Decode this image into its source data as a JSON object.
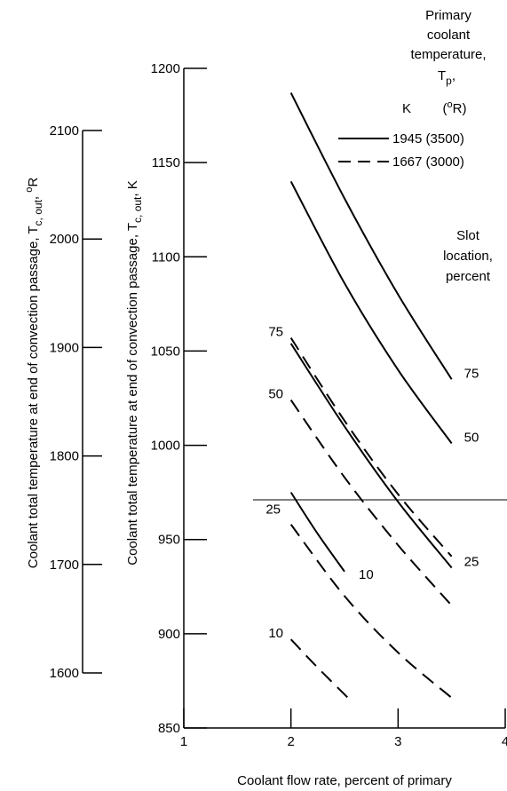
{
  "chart_data": {
    "type": "line",
    "xlabel": "Coolant flow rate, percent of primary",
    "ylabel_K": "Coolant total temperature at end of convection passage, T",
    "ylabel_K_sub": "c, out",
    "ylabel_K_unit": ", K",
    "ylabel_R": "Coolant total temperature at end of convection passage, T",
    "ylabel_R_sub": "c, out",
    "ylabel_R_unit": ", ",
    "ylabel_R_deg": "o",
    "ylabel_R_letter": "R",
    "xlim": [
      1,
      4
    ],
    "ylim_K": [
      850,
      1200
    ],
    "ylim_R": [
      1600,
      2100
    ],
    "x_ticks": [
      "1",
      "2",
      "3",
      "4"
    ],
    "y_ticks_K": [
      "850",
      "900",
      "950",
      "1000",
      "1050",
      "1100",
      "1150",
      "1200"
    ],
    "y_ticks_R": [
      "1600",
      "1700",
      "1800",
      "1900",
      "2000",
      "2100"
    ],
    "legend": {
      "title_lines": [
        "Primary",
        "coolant",
        "temperature,"
      ],
      "tp_main": "T",
      "tp_sub": "p",
      "tp_comma": ",",
      "units_K": "K",
      "units_R_open": "(",
      "units_R_deg": "o",
      "units_R_rest": "R)",
      "entries": [
        {
          "label": "1945 (3500)",
          "style": "solid"
        },
        {
          "label": "1667 (3000)",
          "style": "dashed"
        }
      ]
    },
    "slot_title_lines": [
      "Slot",
      "location,",
      "percent"
    ],
    "series": [
      {
        "style": "solid",
        "slot_label": "75",
        "x": [
          2.0,
          2.5,
          3.0,
          3.5
        ],
        "y": [
          1187,
          1131,
          1080,
          1035
        ]
      },
      {
        "style": "solid",
        "slot_label": "50",
        "x": [
          2.0,
          2.5,
          3.0,
          3.5
        ],
        "y": [
          1140,
          1086,
          1040,
          1001
        ]
      },
      {
        "style": "solid",
        "slot_label": "25",
        "x": [
          2.0,
          2.5,
          3.0,
          3.5
        ],
        "y": [
          1054,
          1010,
          970,
          935
        ]
      },
      {
        "style": "solid",
        "slot_label": "10",
        "x": [
          2.0,
          2.25,
          2.5
        ],
        "y": [
          975,
          953,
          933
        ]
      },
      {
        "style": "dashed",
        "slot_label": "75",
        "x": [
          2.0,
          2.5,
          3.0,
          3.5
        ],
        "y": [
          1057,
          1013,
          974,
          941
        ]
      },
      {
        "style": "dashed",
        "slot_label": "50",
        "x": [
          2.0,
          2.5,
          3.0,
          3.5
        ],
        "y": [
          1024,
          983,
          947,
          915
        ]
      },
      {
        "style": "dashed",
        "slot_label": "25",
        "x": [
          2.0,
          2.5,
          3.0,
          3.5
        ],
        "y": [
          958,
          920,
          890,
          866
        ]
      },
      {
        "style": "dashed",
        "slot_label": "10",
        "x": [
          2.0,
          2.25,
          2.55
        ],
        "y": [
          897,
          882,
          865
        ]
      }
    ]
  }
}
